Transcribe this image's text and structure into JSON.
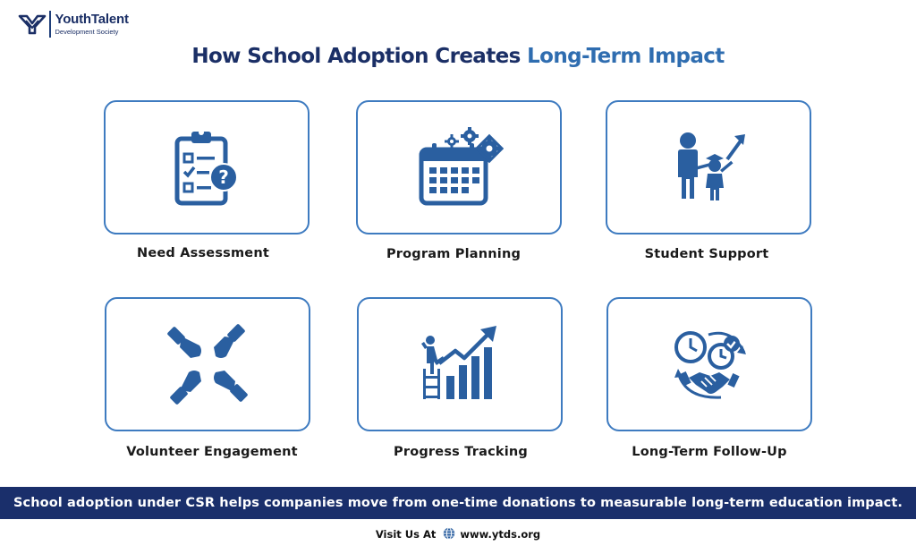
{
  "brand": {
    "name": "YouthTalent",
    "subtitle": "Development Society"
  },
  "title": {
    "part1": "How School Adoption Creates ",
    "part2": "Long-Term Impact"
  },
  "steps": [
    {
      "label": "Need Assessment",
      "icon": "clipboard-checklist-question-icon"
    },
    {
      "label": "Program Planning",
      "icon": "calendar-gears-icon"
    },
    {
      "label": "Student Support",
      "icon": "adult-child-graduate-arrow-icon"
    },
    {
      "label": "Volunteer Engagement",
      "icon": "four-hands-together-icon"
    },
    {
      "label": "Progress Tracking",
      "icon": "person-climbing-growth-chart-icon"
    },
    {
      "label": "Long-Term Follow-Up",
      "icon": "clocks-handshake-cycle-icon"
    }
  ],
  "banner": {
    "text": "School adoption under CSR helps companies move from one-time donations to measurable long-term education impact."
  },
  "footer": {
    "label": "Visit Us At",
    "url": "www.ytds.org"
  },
  "colors": {
    "navy": "#1b2f66",
    "accent": "#2f6db0",
    "icon": "#2a5fa0",
    "banner": "#1a2f6b"
  }
}
